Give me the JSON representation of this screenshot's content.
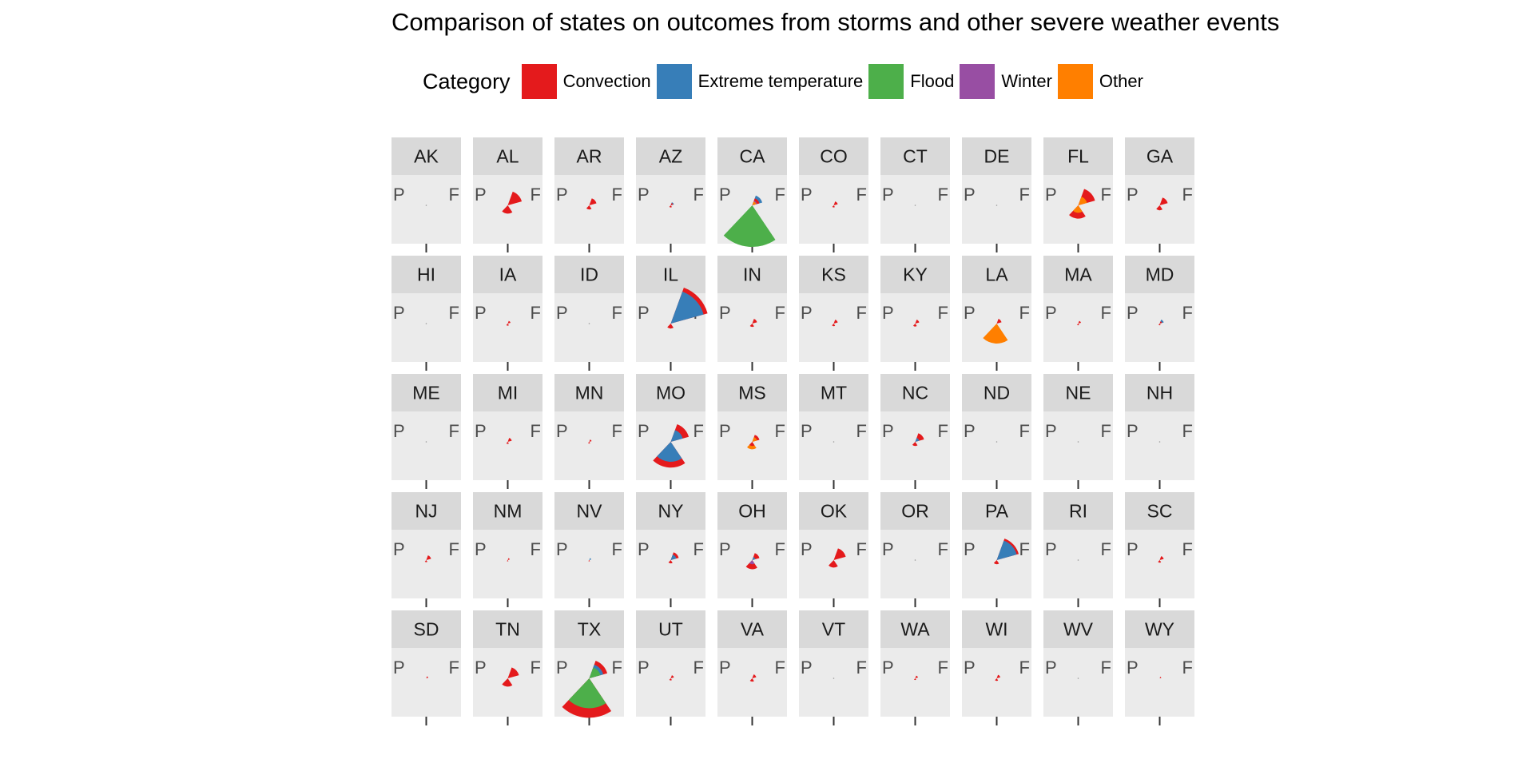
{
  "chart_data": {
    "type": "polar-facet",
    "title": "Comparison of states on outcomes from storms and other severe weather events",
    "legend": {
      "title": "Category",
      "placement": "top",
      "entries": [
        {
          "name": "Convection",
          "color": "#E41A1C"
        },
        {
          "name": "Extreme temperature",
          "color": "#377EB8"
        },
        {
          "name": "Flood",
          "color": "#4DAF4A"
        },
        {
          "name": "Winter",
          "color": "#984EA3"
        },
        {
          "name": "Other",
          "color": "#FF7F00"
        }
      ]
    },
    "axis_labels": {
      "left": "P",
      "right": "F"
    },
    "panel_order": [
      "AK",
      "AL",
      "AR",
      "AZ",
      "CA",
      "CO",
      "CT",
      "DE",
      "FL",
      "GA",
      "HI",
      "IA",
      "ID",
      "IL",
      "IN",
      "KS",
      "KY",
      "LA",
      "MA",
      "MD",
      "ME",
      "MI",
      "MN",
      "MO",
      "MS",
      "MT",
      "NC",
      "ND",
      "NE",
      "NH",
      "NJ",
      "NM",
      "NV",
      "NY",
      "OH",
      "OK",
      "OR",
      "PA",
      "RI",
      "SC",
      "SD",
      "TN",
      "TX",
      "UT",
      "VA",
      "VT",
      "WA",
      "WI",
      "WV",
      "WY"
    ],
    "ncol": 10,
    "note": "Each panel: right wedge group = fatalities (F), left/bottom group = property damage (P); radius = relative magnitude (0-1)",
    "panels": {
      "AK": {
        "F": [],
        "P": []
      },
      "AL": {
        "F": [
          [
            "Convection",
            0.35
          ]
        ],
        "P": [
          [
            "Convection",
            0.2
          ]
        ]
      },
      "AR": {
        "F": [
          [
            "Convection",
            0.18
          ]
        ],
        "P": [
          [
            "Convection",
            0.1
          ]
        ]
      },
      "AZ": {
        "F": [
          [
            "Extreme temperature",
            0.08
          ],
          [
            "Convection",
            0.06
          ]
        ],
        "P": [
          [
            "Convection",
            0.05
          ]
        ]
      },
      "CA": {
        "F": [
          [
            "Extreme temperature",
            0.25
          ],
          [
            "Convection",
            0.18
          ],
          [
            "Winter",
            0.12
          ],
          [
            "Other",
            0.1
          ]
        ],
        "P": [
          [
            "Flood",
            1.0
          ]
        ]
      },
      "CO": {
        "F": [
          [
            "Convection",
            0.1
          ]
        ],
        "P": [
          [
            "Convection",
            0.05
          ]
        ]
      },
      "CT": {
        "F": [],
        "P": []
      },
      "DE": {
        "F": [],
        "P": []
      },
      "FL": {
        "F": [
          [
            "Convection",
            0.42
          ],
          [
            "Other",
            0.22
          ]
        ],
        "P": [
          [
            "Convection",
            0.32
          ],
          [
            "Other",
            0.18
          ]
        ]
      },
      "GA": {
        "F": [
          [
            "Convection",
            0.2
          ]
        ],
        "P": [
          [
            "Convection",
            0.12
          ]
        ]
      },
      "HI": {
        "F": [],
        "P": []
      },
      "IA": {
        "F": [
          [
            "Convection",
            0.07
          ]
        ],
        "P": [
          [
            "Convection",
            0.05
          ]
        ]
      },
      "ID": {
        "F": [],
        "P": []
      },
      "IL": {
        "F": [
          [
            "Convection",
            0.92
          ],
          [
            "Extreme temperature",
            0.82
          ]
        ],
        "P": [
          [
            "Convection",
            0.12
          ]
        ]
      },
      "IN": {
        "F": [
          [
            "Convection",
            0.12
          ]
        ],
        "P": [
          [
            "Convection",
            0.08
          ]
        ]
      },
      "KS": {
        "F": [
          [
            "Convection",
            0.1
          ]
        ],
        "P": [
          [
            "Convection",
            0.06
          ]
        ]
      },
      "KY": {
        "F": [
          [
            "Convection",
            0.1
          ]
        ],
        "P": [
          [
            "Convection",
            0.07
          ]
        ]
      },
      "LA": {
        "F": [
          [
            "Convection",
            0.12
          ]
        ],
        "P": [
          [
            "Other",
            0.48
          ]
        ]
      },
      "MA": {
        "F": [
          [
            "Convection",
            0.07
          ]
        ],
        "P": [
          [
            "Convection",
            0.04
          ]
        ]
      },
      "MD": {
        "F": [
          [
            "Extreme temperature",
            0.1
          ],
          [
            "Convection",
            0.06
          ]
        ],
        "P": [
          [
            "Convection",
            0.04
          ]
        ]
      },
      "ME": {
        "F": [],
        "P": []
      },
      "MI": {
        "F": [
          [
            "Convection",
            0.1
          ]
        ],
        "P": [
          [
            "Convection",
            0.05
          ]
        ]
      },
      "MN": {
        "F": [
          [
            "Convection",
            0.06
          ]
        ],
        "P": [
          [
            "Convection",
            0.04
          ]
        ]
      },
      "MO": {
        "F": [
          [
            "Convection",
            0.45
          ],
          [
            "Extreme temperature",
            0.3
          ]
        ],
        "P": [
          [
            "Convection",
            0.62
          ],
          [
            "Extreme temperature",
            0.48
          ]
        ]
      },
      "MS": {
        "F": [
          [
            "Convection",
            0.18
          ],
          [
            "Other",
            0.12
          ]
        ],
        "P": [
          [
            "Other",
            0.18
          ],
          [
            "Convection",
            0.1
          ]
        ]
      },
      "MT": {
        "F": [],
        "P": []
      },
      "NC": {
        "F": [
          [
            "Convection",
            0.22
          ],
          [
            "Extreme temperature",
            0.1
          ]
        ],
        "P": [
          [
            "Convection",
            0.1
          ]
        ]
      },
      "ND": {
        "F": [],
        "P": []
      },
      "NE": {
        "F": [],
        "P": []
      },
      "NH": {
        "F": [],
        "P": []
      },
      "NJ": {
        "F": [
          [
            "Convection",
            0.12
          ]
        ],
        "P": [
          [
            "Convection",
            0.05
          ]
        ]
      },
      "NM": {
        "F": [
          [
            "Convection",
            0.05
          ]
        ],
        "P": [
          [
            "Convection",
            0.03
          ]
        ]
      },
      "NV": {
        "F": [
          [
            "Extreme temperature",
            0.05
          ]
        ],
        "P": [
          [
            "Convection",
            0.03
          ]
        ]
      },
      "NY": {
        "F": [
          [
            "Convection",
            0.2
          ],
          [
            "Extreme temperature",
            0.14
          ]
        ],
        "P": [
          [
            "Convection",
            0.08
          ]
        ]
      },
      "OH": {
        "F": [
          [
            "Convection",
            0.18
          ],
          [
            "Extreme temperature",
            0.08
          ]
        ],
        "P": [
          [
            "Convection",
            0.22
          ],
          [
            "Winter",
            0.1
          ]
        ]
      },
      "OK": {
        "F": [
          [
            "Convection",
            0.3
          ]
        ],
        "P": [
          [
            "Convection",
            0.18
          ]
        ]
      },
      "OR": {
        "F": [],
        "P": []
      },
      "PA": {
        "F": [
          [
            "Convection",
            0.55
          ],
          [
            "Extreme temperature",
            0.5
          ]
        ],
        "P": [
          [
            "Convection",
            0.1
          ]
        ]
      },
      "RI": {
        "F": [],
        "P": []
      },
      "SC": {
        "F": [
          [
            "Convection",
            0.1
          ]
        ],
        "P": [
          [
            "Convection",
            0.06
          ]
        ]
      },
      "SD": {
        "F": [
          [
            "Convection",
            0.05
          ]
        ],
        "P": []
      },
      "TN": {
        "F": [
          [
            "Convection",
            0.28
          ]
        ],
        "P": [
          [
            "Convection",
            0.2
          ]
        ]
      },
      "TX": {
        "F": [
          [
            "Convection",
            0.45
          ],
          [
            "Extreme temperature",
            0.35
          ],
          [
            "Flood",
            0.28
          ]
        ],
        "P": [
          [
            "Convection",
            0.95
          ],
          [
            "Flood",
            0.72
          ]
        ]
      },
      "UT": {
        "F": [
          [
            "Convection",
            0.08
          ]
        ],
        "P": [
          [
            "Convection",
            0.05
          ]
        ]
      },
      "VA": {
        "F": [
          [
            "Convection",
            0.1
          ]
        ],
        "P": [
          [
            "Convection",
            0.08
          ]
        ]
      },
      "VT": {
        "F": [],
        "P": []
      },
      "WA": {
        "F": [
          [
            "Convection",
            0.07
          ]
        ],
        "P": [
          [
            "Convection",
            0.04
          ]
        ]
      },
      "WI": {
        "F": [
          [
            "Convection",
            0.09
          ]
        ],
        "P": [
          [
            "Convection",
            0.06
          ]
        ]
      },
      "WV": {
        "F": [],
        "P": []
      },
      "WY": {
        "F": [
          [
            "Convection",
            0.04
          ]
        ],
        "P": []
      }
    }
  }
}
